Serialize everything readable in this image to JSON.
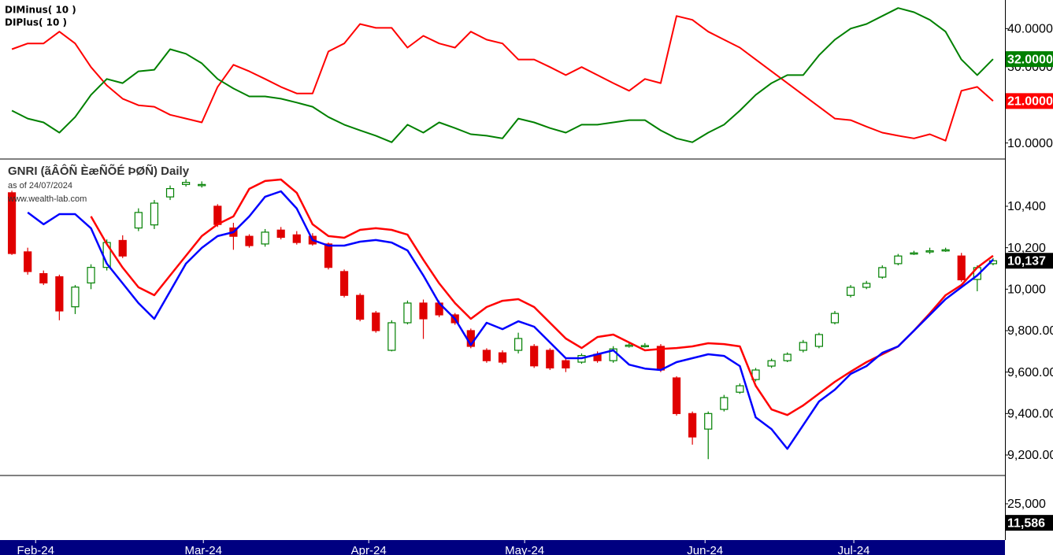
{
  "chart_data": [
    {
      "type": "line",
      "xlim": [
        -0.75,
        62.75
      ],
      "ylim": [
        6,
        47.5
      ],
      "yticks": [
        {
          "value": 10,
          "label": "10.0000"
        },
        {
          "value": 30,
          "label": "30.0000"
        },
        {
          "value": 40,
          "label": "40.0000"
        }
      ],
      "series": [
        {
          "name": "DIMinus( 10 )",
          "color": "#ff0000",
          "last_value_label": "21.0000",
          "values": [
            34.6,
            36.1,
            36.1,
            39.2,
            36.1,
            29.9,
            25.1,
            21.6,
            19.9,
            19.5,
            17.4,
            16.4,
            15.4,
            24.7,
            30.5,
            28.8,
            26.8,
            24.7,
            23.0,
            23.0,
            34.0,
            36.1,
            41.2,
            40.2,
            40.2,
            35.0,
            38.1,
            36.1,
            35.0,
            39.2,
            37.1,
            36.1,
            31.9,
            31.9,
            29.9,
            27.8,
            29.9,
            27.8,
            25.7,
            23.7,
            26.8,
            25.7,
            43.3,
            42.3,
            39.2,
            37.1,
            35.0,
            31.9,
            28.8,
            25.7,
            22.6,
            19.5,
            16.4,
            16.0,
            14.3,
            12.7,
            11.9,
            11.2,
            12.3,
            10.6,
            23.7,
            24.7,
            21.0
          ]
        },
        {
          "name": "DIPlus( 10 )",
          "color": "#008000",
          "last_value_label": "32.0000",
          "values": [
            18.5,
            16.4,
            15.4,
            12.7,
            16.8,
            22.6,
            26.8,
            25.7,
            28.8,
            29.2,
            34.6,
            33.4,
            30.9,
            26.8,
            24.3,
            22.2,
            22.2,
            21.6,
            20.6,
            19.5,
            16.8,
            14.8,
            13.3,
            11.9,
            10.2,
            14.8,
            12.7,
            15.4,
            13.9,
            12.3,
            11.9,
            11.2,
            16.4,
            15.4,
            13.9,
            12.7,
            14.8,
            14.8,
            15.4,
            16.0,
            16.0,
            13.3,
            11.2,
            10.2,
            12.7,
            14.8,
            18.5,
            22.6,
            25.7,
            27.8,
            27.8,
            33.0,
            37.1,
            40.0,
            41.2,
            43.3,
            45.4,
            44.3,
            42.3,
            39.2,
            31.9,
            27.8,
            32.0
          ]
        }
      ]
    },
    {
      "type": "candlestick",
      "title": "GNRI (ãÂÔÑ ÈæÑÕÉ ÞØÑ) Daily",
      "subtitle": "as of 24/07/2024",
      "source": "www.wealth-lab.com",
      "xlim": [
        -0.75,
        62.75
      ],
      "ylim": [
        9105,
        10624
      ],
      "yticks": [
        {
          "value": 9200,
          "label": "9,200.00"
        },
        {
          "value": 9400,
          "label": "9,400.00"
        },
        {
          "value": 9600,
          "label": "9,600.00"
        },
        {
          "value": 9800,
          "label": "9,800.00"
        },
        {
          "value": 10000,
          "label": "10,000"
        },
        {
          "value": 10200,
          "label": "10,200"
        },
        {
          "value": 10400,
          "label": "10,400"
        }
      ],
      "up_color": "#008000",
      "down_color": "#e00000",
      "open": [
        10465,
        10180,
        10075,
        10060,
        9915,
        10030,
        10105,
        10235,
        10295,
        10310,
        10445,
        10505,
        10500,
        10400,
        10295,
        10255,
        10218,
        10285,
        10262,
        10255,
        10218,
        10085,
        9970,
        9885,
        9705,
        9838,
        9933,
        9933,
        9876,
        9800,
        9705,
        9693,
        9705,
        9724,
        9705,
        9655,
        9648,
        9686,
        9655,
        9724,
        9724,
        9724,
        9572,
        9400,
        9325,
        9420,
        9503,
        9564,
        9629,
        9655,
        9705,
        9724,
        9838,
        9970,
        10009,
        10058,
        10123,
        10172,
        10180,
        10187,
        10160,
        10047,
        10123
      ],
      "high": [
        10475,
        10200,
        10090,
        10070,
        10020,
        10120,
        10240,
        10260,
        10390,
        10430,
        10500,
        10530,
        10520,
        10410,
        10320,
        10265,
        10290,
        10300,
        10280,
        10270,
        10225,
        10095,
        9980,
        9895,
        9850,
        9945,
        9950,
        9945,
        9885,
        9810,
        9715,
        9705,
        9790,
        9735,
        9715,
        9665,
        9690,
        9700,
        9725,
        9740,
        9740,
        9735,
        9580,
        9410,
        9410,
        9490,
        9545,
        9620,
        9665,
        9695,
        9755,
        9790,
        9895,
        10020,
        10040,
        10115,
        10170,
        10185,
        10200,
        10200,
        10175,
        10115,
        10150
      ],
      "low": [
        10165,
        10070,
        10020,
        9850,
        9880,
        10000,
        10090,
        10150,
        10280,
        10290,
        10430,
        10495,
        10490,
        10300,
        10190,
        10200,
        10205,
        10240,
        10215,
        10210,
        10095,
        9960,
        9845,
        9790,
        9700,
        9830,
        9760,
        9865,
        9828,
        9715,
        9645,
        9638,
        9690,
        9620,
        9610,
        9600,
        9640,
        9645,
        9645,
        9718,
        9718,
        9600,
        9390,
        9250,
        9180,
        9410,
        9495,
        9555,
        9620,
        9648,
        9695,
        9715,
        9830,
        9960,
        10000,
        10050,
        10115,
        10165,
        10170,
        10180,
        10035,
        9990,
        10115
      ],
      "close": [
        10172,
        10085,
        10030,
        9895,
        10010,
        10105,
        10225,
        10160,
        10370,
        10415,
        10485,
        10515,
        10505,
        10312,
        10255,
        10210,
        10275,
        10250,
        10225,
        10218,
        10105,
        9970,
        9855,
        9800,
        9838,
        9933,
        9857,
        9876,
        9838,
        9724,
        9655,
        9648,
        9762,
        9630,
        9620,
        9620,
        9680,
        9655,
        9712,
        9730,
        9728,
        9610,
        9400,
        9287,
        9400,
        9477,
        9534,
        9610,
        9655,
        9686,
        9743,
        9781,
        9883,
        10009,
        10028,
        10104,
        10160,
        10175,
        10185,
        10190,
        10045,
        10104,
        10137
      ],
      "close_last_label": "10,137",
      "series": [
        {
          "color": "#ff0000",
          "values": [
            null,
            null,
            null,
            null,
            null,
            10351,
            10218,
            10104,
            10009,
            9971,
            10066,
            10161,
            10256,
            10313,
            10351,
            10484,
            10522,
            10529,
            10465,
            10313,
            10256,
            10248,
            10286,
            10294,
            10286,
            10263,
            10142,
            10028,
            9933,
            9857,
            9914,
            9944,
            9952,
            9914,
            9838,
            9762,
            9716,
            9769,
            9781,
            9743,
            9705,
            9712,
            9716,
            9724,
            9739,
            9735,
            9724,
            9534,
            9420,
            9393,
            9439,
            9496,
            9553,
            9602,
            9648,
            9686,
            9724,
            9800,
            9883,
            9971,
            10020,
            10104,
            10161
          ]
        },
        {
          "color": "#0000ff",
          "values": [
            null,
            10370,
            10313,
            10362,
            10362,
            10294,
            10123,
            10028,
            9933,
            9857,
            9990,
            10123,
            10199,
            10256,
            10275,
            10351,
            10446,
            10472,
            10389,
            10237,
            10210,
            10210,
            10229,
            10237,
            10225,
            10187,
            10066,
            9933,
            9857,
            9731,
            9838,
            9807,
            9845,
            9819,
            9743,
            9667,
            9667,
            9686,
            9705,
            9636,
            9617,
            9610,
            9648,
            9667,
            9686,
            9678,
            9629,
            9382,
            9325,
            9230,
            9344,
            9458,
            9515,
            9591,
            9629,
            9693,
            9724,
            9800,
            9876,
            9952,
            10009,
            10066,
            10142
          ]
        }
      ]
    },
    {
      "type": "bar",
      "xlim": [
        -0.75,
        62.75
      ],
      "ylim": [
        0,
        44400
      ],
      "yticks": [
        {
          "value": 25000,
          "label": "25,000"
        }
      ],
      "last_value": 11586,
      "last_value_label": "11,586",
      "xticks": [
        {
          "value": 1.5,
          "label": "Feb-24"
        },
        {
          "value": 12.1,
          "label": "Mar-24"
        },
        {
          "value": 22.55,
          "label": "Apr-24"
        },
        {
          "value": 32.4,
          "label": "May-24"
        },
        {
          "value": 43.8,
          "label": "Jun-24"
        },
        {
          "value": 53.2,
          "label": "Jul-24"
        }
      ]
    }
  ]
}
